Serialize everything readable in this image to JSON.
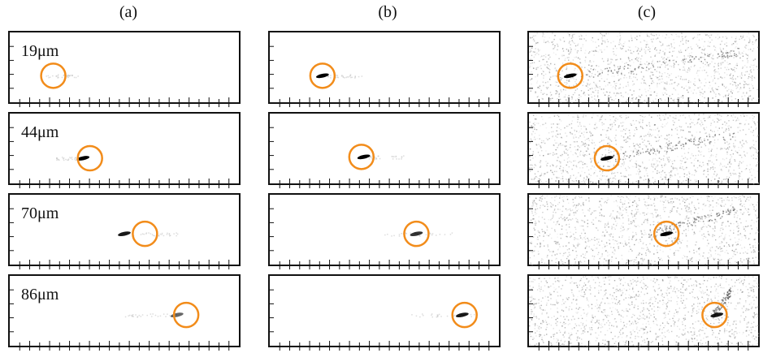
{
  "figure": {
    "columns": [
      {
        "id": "a",
        "label": "(a)",
        "noise": false
      },
      {
        "id": "b",
        "label": "(b)",
        "noise": false
      },
      {
        "id": "c",
        "label": "(c)",
        "noise": true
      }
    ],
    "rows": [
      {
        "label": "19μm"
      },
      {
        "label": "44μm"
      },
      {
        "label": "70μm"
      },
      {
        "label": "86μm"
      }
    ],
    "marker_color": "#f28c1a",
    "panels": [
      [
        {
          "circle": [
            0.19,
            0.62
          ],
          "spot": null,
          "spot_strength": 0.0,
          "trail": [
            0.14,
            0.3
          ]
        },
        {
          "circle": [
            0.23,
            0.62
          ],
          "spot": [
            0.23,
            0.62
          ],
          "spot_strength": 1.0,
          "trail": [
            0.25,
            0.4
          ]
        },
        {
          "circle": [
            0.18,
            0.62
          ],
          "spot": [
            0.18,
            0.62
          ],
          "spot_strength": 1.0,
          "trail": [
            0.2,
            0.92
          ]
        }
      ],
      [
        {
          "circle": [
            0.35,
            0.64
          ],
          "spot": [
            0.32,
            0.64
          ],
          "spot_strength": 1.0,
          "trail": [
            0.2,
            0.31
          ]
        },
        {
          "circle": [
            0.4,
            0.62
          ],
          "spot": [
            0.41,
            0.62
          ],
          "spot_strength": 1.0,
          "trail": [
            0.43,
            0.6
          ]
        },
        {
          "circle": [
            0.34,
            0.64
          ],
          "spot": [
            0.34,
            0.64
          ],
          "spot_strength": 1.0,
          "trail": [
            0.35,
            0.9
          ]
        }
      ],
      [
        {
          "circle": [
            0.59,
            0.56
          ],
          "spot": [
            0.5,
            0.56
          ],
          "spot_strength": 0.9,
          "trail": [
            0.51,
            0.75
          ]
        },
        {
          "circle": [
            0.64,
            0.56
          ],
          "spot": [
            0.64,
            0.56
          ],
          "spot_strength": 0.8,
          "trail": [
            0.5,
            0.8
          ]
        },
        {
          "circle": [
            0.6,
            0.56
          ],
          "spot": [
            0.6,
            0.56
          ],
          "spot_strength": 1.0,
          "trail": [
            0.52,
            0.9
          ]
        }
      ],
      [
        {
          "circle": [
            0.77,
            0.56
          ],
          "spot": [
            0.73,
            0.56
          ],
          "spot_strength": 0.6,
          "trail": [
            0.48,
            0.73
          ]
        },
        {
          "circle": [
            0.85,
            0.56
          ],
          "spot": [
            0.84,
            0.56
          ],
          "spot_strength": 0.9,
          "trail": [
            0.6,
            0.9
          ]
        },
        {
          "circle": [
            0.81,
            0.56
          ],
          "spot": [
            0.82,
            0.56
          ],
          "spot_strength": 0.9,
          "trail": [
            0.8,
            0.88
          ]
        }
      ]
    ]
  }
}
